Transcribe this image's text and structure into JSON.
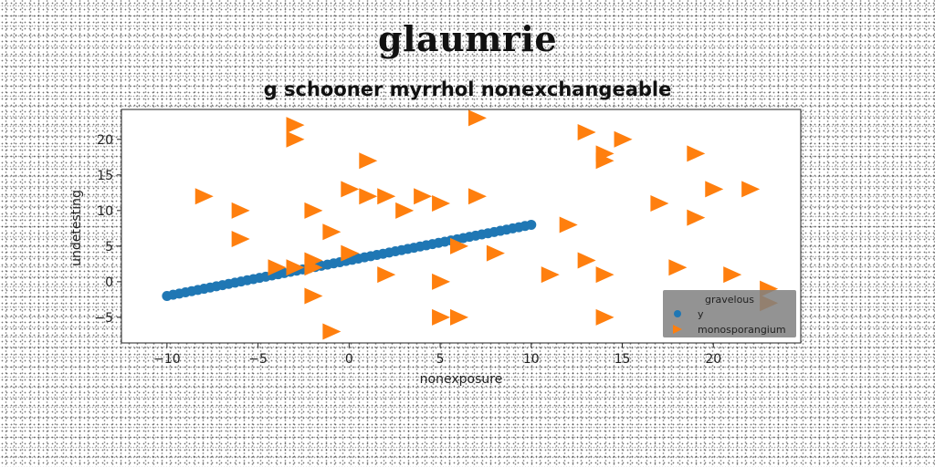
{
  "chart_data": {
    "type": "scatter",
    "title": "glaumrie",
    "subtitle": "g schooner myrrhol nonexchangeable",
    "xlabel": "nonexposure",
    "ylabel": "undetesting",
    "xlim": [
      -12.5,
      24.8
    ],
    "ylim": [
      -8.6,
      24.2
    ],
    "xticks": [
      -10,
      -5,
      0,
      5,
      10,
      15,
      20
    ],
    "yticks": [
      -5,
      0,
      5,
      10,
      15,
      20
    ],
    "grid": false,
    "legend": {
      "title": "gravelous",
      "placement": "lower-right",
      "background": "#808080"
    },
    "series": [
      {
        "name": "y",
        "marker": "circle",
        "color": "#1f77b4",
        "line": {
          "x_start": -10,
          "x_end": 10,
          "slope": 0.5,
          "intercept": 3,
          "n_points": 60
        }
      },
      {
        "name": "monosporangium",
        "marker": "triangle-right",
        "color": "#ff7f0e",
        "points": [
          [
            -3,
            22
          ],
          [
            -3,
            20
          ],
          [
            7,
            23
          ],
          [
            13,
            21
          ],
          [
            15,
            20
          ],
          [
            14,
            18
          ],
          [
            14,
            17
          ],
          [
            19,
            18
          ],
          [
            1,
            17
          ],
          [
            -8,
            12
          ],
          [
            0,
            13
          ],
          [
            1,
            12
          ],
          [
            2,
            12
          ],
          [
            4,
            12
          ],
          [
            5,
            11
          ],
          [
            7,
            12
          ],
          [
            17,
            11
          ],
          [
            20,
            13
          ],
          [
            22,
            13
          ],
          [
            -6,
            10
          ],
          [
            -2,
            10
          ],
          [
            3,
            10
          ],
          [
            12,
            8
          ],
          [
            19,
            9
          ],
          [
            -1,
            7
          ],
          [
            -6,
            6
          ],
          [
            6,
            5
          ],
          [
            0,
            4
          ],
          [
            8,
            4
          ],
          [
            -4,
            2
          ],
          [
            -3,
            2
          ],
          [
            -2,
            3
          ],
          [
            -2,
            2
          ],
          [
            2,
            1
          ],
          [
            11,
            1
          ],
          [
            13,
            3
          ],
          [
            14,
            1
          ],
          [
            18,
            2
          ],
          [
            21,
            1
          ],
          [
            5,
            0
          ],
          [
            23,
            -1
          ],
          [
            -2,
            -2
          ],
          [
            23,
            -3
          ],
          [
            5,
            -5
          ],
          [
            6,
            -5
          ],
          [
            14,
            -5
          ],
          [
            -1,
            -7
          ]
        ]
      }
    ]
  }
}
